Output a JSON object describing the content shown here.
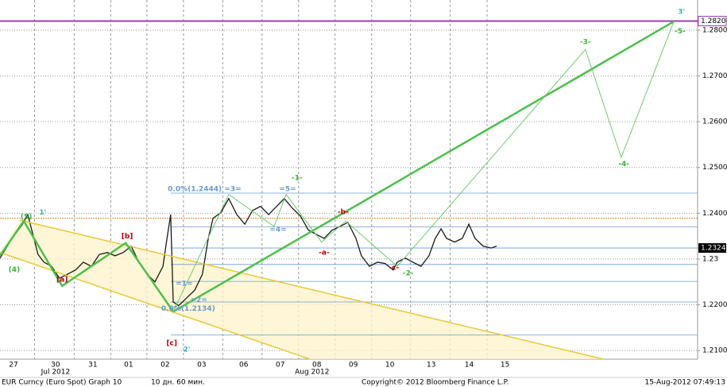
{
  "chart_data": {
    "type": "line",
    "xlim": [
      -0.37,
      18.72
    ],
    "ylim": [
      1.2081,
      1.2866
    ],
    "xticks": [
      {
        "value": 0,
        "label": "27"
      },
      {
        "value": 1.15,
        "label": "30"
      },
      {
        "value": 2.17,
        "label": "31"
      },
      {
        "value": 3.15,
        "label": "01"
      },
      {
        "value": 4.15,
        "label": "02"
      },
      {
        "value": 5.15,
        "label": "03"
      },
      {
        "value": 6.3,
        "label": "06"
      },
      {
        "value": 7.3,
        "label": "07"
      },
      {
        "value": 8.3,
        "label": "08"
      },
      {
        "value": 9.3,
        "label": "09"
      },
      {
        "value": 10.3,
        "label": "10"
      },
      {
        "value": 11.43,
        "label": "13"
      },
      {
        "value": 12.47,
        "label": "14"
      },
      {
        "value": 13.45,
        "label": "15"
      }
    ],
    "months": [
      {
        "value": 1.15,
        "label": "Jul 2012"
      },
      {
        "value": 8.17,
        "label": "Aug 2012"
      }
    ],
    "yticks": [
      {
        "value": 1.21,
        "label": "1.2100"
      },
      {
        "value": 1.22,
        "label": "1.2200"
      },
      1.23,
      {
        "value": 1.24,
        "label": "1.2400"
      },
      {
        "value": 1.25,
        "label": "1.2500"
      },
      {
        "value": 1.26,
        "label": "1.2600"
      },
      {
        "value": 1.27,
        "label": "1.2700"
      },
      {
        "value": 1.28,
        "label": "1.2800"
      }
    ],
    "grid": true,
    "series": [
      {
        "color": "#1a1a1a",
        "x": [
          -0.37,
          -0.04,
          0.24,
          0.39,
          0.5,
          0.67,
          0.83,
          1.04,
          1.26,
          1.48,
          1.7,
          1.91,
          2.13,
          2.35,
          2.57,
          2.78,
          3.0,
          3.22,
          3.43,
          3.65,
          3.87,
          4.09,
          4.2,
          4.3,
          4.37,
          4.52,
          4.74,
          4.96,
          5.17,
          5.33,
          5.46,
          5.67,
          5.89,
          6.11,
          6.33,
          6.54,
          6.76,
          6.98,
          7.2,
          7.41,
          7.63,
          7.85,
          8.07,
          8.28,
          8.5,
          8.72,
          8.93,
          9.15,
          9.37,
          9.52,
          9.74,
          9.96,
          10.17,
          10.39,
          10.5,
          10.72,
          10.93,
          11.15,
          11.37,
          11.54,
          11.7,
          11.85,
          12.07,
          12.28,
          12.46,
          12.63,
          12.85,
          13.07,
          13.22
        ],
        "values": [
          1.2302,
          1.2345,
          1.2375,
          1.2397,
          1.2363,
          1.231,
          1.2293,
          1.2284,
          1.2258,
          1.2267,
          1.2276,
          1.2293,
          1.2284,
          1.231,
          1.2314,
          1.2307,
          1.2314,
          1.2328,
          1.2293,
          1.2267,
          1.225,
          1.2284,
          1.2345,
          1.2397,
          1.2206,
          1.2198,
          1.2215,
          1.2232,
          1.2267,
          1.2345,
          1.2389,
          1.2401,
          1.2432,
          1.2397,
          1.2376,
          1.2406,
          1.2415,
          1.2397,
          1.2415,
          1.2432,
          1.2411,
          1.2394,
          1.2363,
          1.2354,
          1.2345,
          1.2363,
          1.2371,
          1.238,
          1.2345,
          1.2307,
          1.2284,
          1.2293,
          1.229,
          1.2276,
          1.2293,
          1.2302,
          1.2293,
          1.2284,
          1.2307,
          1.2345,
          1.2366,
          1.2345,
          1.2337,
          1.2345,
          1.2376,
          1.2345,
          1.2328,
          1.2324,
          1.2328
        ]
      }
    ],
    "fib_levels": [
      1.2444,
      1.237,
      1.2324,
      1.2288,
      1.2251,
      1.2206,
      1.2134
    ],
    "fib_color": "#6a9bd0",
    "resistance": 1.2389,
    "resistance_color": "#e08a2a",
    "target": {
      "value": 1.282,
      "label": "1.2820"
    },
    "target_color": "#9b3fb8",
    "last_price": 1.2324,
    "overlays": [
      {
        "color": "#e8c832",
        "width": 1.5,
        "x": [
          0.17,
          16.15
        ],
        "y": [
          1.2385,
          1.2081
        ]
      },
      {
        "color": "#e8c832",
        "width": 1.5,
        "x": [
          -0.37,
          8.11
        ],
        "y": [
          1.2314,
          1.2081
        ]
      },
      {
        "color": "#4cc04c",
        "width": 2.5,
        "x": [
          -0.37,
          0.28,
          1.33,
          3.07,
          4.37
        ],
        "y": [
          1.2307,
          1.2383,
          1.2241,
          1.2335,
          1.2185
        ]
      },
      {
        "color": "#4cc04c",
        "width": 2.5,
        "x": [
          4.37,
          18.07
        ],
        "y": [
          1.2185,
          1.2819
        ]
      },
      {
        "color": "#6ccc6c",
        "width": 1,
        "x": [
          4.37,
          5.89,
          7.13,
          7.46,
          8.43,
          9.09,
          10.5,
          15.65,
          16.63,
          18.07
        ],
        "y": [
          1.2185,
          1.2441,
          1.2371,
          1.2441,
          1.2337,
          1.2383,
          1.2284,
          1.2758,
          1.2522,
          1.2819
        ]
      }
    ],
    "annotations": [
      {
        "text": "(5)",
        "x": 0.35,
        "y": 1.2392,
        "color": "#3cb43c"
      },
      {
        "text": "1'",
        "x": 0.8,
        "y": 1.2401,
        "color": "#3ab5c0"
      },
      {
        "text": "(4)",
        "x": 0.02,
        "y": 1.2276,
        "color": "#3cb43c"
      },
      {
        "text": "[a]",
        "x": 1.33,
        "y": 1.2255,
        "color": "#c00000"
      },
      {
        "text": "[b]",
        "x": 3.11,
        "y": 1.2349,
        "color": "#c00000"
      },
      {
        "text": "[c]",
        "x": 4.33,
        "y": 1.2116,
        "color": "#c00000"
      },
      {
        "text": "2'",
        "x": 4.74,
        "y": 1.2102,
        "color": "#3ab5c0"
      },
      {
        "text": "=1=",
        "x": 4.67,
        "y": 1.2246,
        "color": "#6a9bd0"
      },
      {
        "text": "=2=",
        "x": 5.07,
        "y": 1.221,
        "color": "#6a9bd0"
      },
      {
        "text": "0.0%(1.2444)",
        "x": 4.96,
        "y": 1.2453,
        "color": "#6a9bd0"
      },
      {
        "text": "0.0%(1.2134)",
        "x": 4.78,
        "y": 1.2191,
        "color": "#6a9bd0"
      },
      {
        "text": "=3=",
        "x": 6.0,
        "y": 1.2453,
        "color": "#6a9bd0"
      },
      {
        "text": "=5=",
        "x": 7.5,
        "y": 1.2453,
        "color": "#6a9bd0"
      },
      {
        "text": "=4=",
        "x": 7.24,
        "y": 1.2364,
        "color": "#6a9bd0"
      },
      {
        "text": "-1-",
        "x": 7.76,
        "y": 1.2477,
        "color": "#3cb43c"
      },
      {
        "text": "-b-",
        "x": 9.02,
        "y": 1.2402,
        "color": "#c00000"
      },
      {
        "text": "-a-",
        "x": 8.5,
        "y": 1.2314,
        "color": "#c00000"
      },
      {
        "text": "-c-",
        "x": 10.41,
        "y": 1.2281,
        "color": "#c00000"
      },
      {
        "text": "-2-",
        "x": 10.8,
        "y": 1.2269,
        "color": "#3cb43c"
      },
      {
        "text": "-3-",
        "x": 15.65,
        "y": 1.2774,
        "color": "#3cb43c"
      },
      {
        "text": "-4-",
        "x": 16.7,
        "y": 1.2507,
        "color": "#3cb43c"
      },
      {
        "text": "-5-",
        "x": 18.24,
        "y": 1.2797,
        "color": "#3cb43c"
      },
      {
        "text": "3'",
        "x": 18.28,
        "y": 1.284,
        "color": "#3ab5c0"
      }
    ],
    "footer": [
      "EUR Curncy (Euro Spot) Graph 10",
      "10 дн. 60 мин.",
      "Copyright© 2012 Bloomberg Finance L.P.",
      "15-Aug-2012 07:49:13"
    ]
  }
}
